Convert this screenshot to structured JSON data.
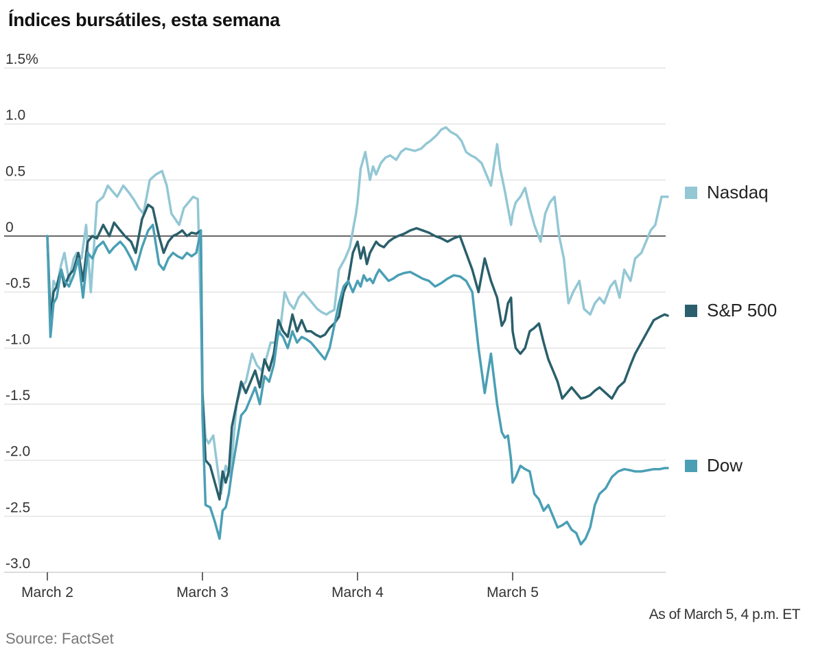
{
  "chart_data": {
    "type": "line",
    "title": "Índices bursátiles, esta semana",
    "xlabel": "",
    "ylabel": "",
    "ylim": [
      -3.0,
      1.5
    ],
    "y_ticks": [
      1.5,
      1.0,
      0.5,
      0,
      -0.5,
      -1.0,
      -1.5,
      -2.0,
      -2.5,
      -3.0
    ],
    "y_tick_labels": [
      "1.5%",
      "1.0",
      "0.5",
      "0",
      "-0.5",
      "-1.0",
      "-1.5",
      "-2.0",
      "-2.5",
      "-3.0"
    ],
    "x_range": [
      0,
      4
    ],
    "categories": [
      "March 2",
      "March 3",
      "March 4",
      "March 5"
    ],
    "zero_line": true,
    "note": "As of March 5, 4 p.m. ET",
    "source": "Source: FactSet",
    "series": [
      {
        "name": "Nasdaq",
        "color": "#93c7d4",
        "x": [
          0,
          0.02,
          0.04,
          0.06,
          0.09,
          0.11,
          0.14,
          0.17,
          0.19,
          0.22,
          0.25,
          0.28,
          0.32,
          0.36,
          0.39,
          0.42,
          0.45,
          0.49,
          0.53,
          0.56,
          0.59,
          0.62,
          0.66,
          0.7,
          0.74,
          0.77,
          0.8,
          0.85,
          0.88,
          0.91,
          0.94,
          0.97,
          0.99,
          1.0,
          1.02,
          1.04,
          1.07,
          1.1,
          1.12,
          1.15,
          1.18,
          1.22,
          1.25,
          1.28,
          1.32,
          1.35,
          1.38,
          1.41,
          1.44,
          1.47,
          1.5,
          1.53,
          1.56,
          1.59,
          1.62,
          1.65,
          1.68,
          1.71,
          1.74,
          1.77,
          1.8,
          1.82,
          1.85,
          1.88,
          1.92,
          1.95,
          1.99,
          2.0,
          2.02,
          2.05,
          2.08,
          2.1,
          2.12,
          2.15,
          2.18,
          2.21,
          2.25,
          2.28,
          2.31,
          2.34,
          2.37,
          2.41,
          2.44,
          2.47,
          2.51,
          2.54,
          2.57,
          2.6,
          2.64,
          2.67,
          2.7,
          2.73,
          2.76,
          2.8,
          2.83,
          2.86,
          2.9,
          2.92,
          2.95,
          2.99,
          3.0,
          3.02,
          3.05,
          3.08,
          3.11,
          3.14,
          3.18,
          3.21,
          3.24,
          3.27,
          3.3,
          3.33,
          3.36,
          3.39,
          3.43,
          3.46,
          3.5,
          3.53,
          3.56,
          3.59,
          3.63,
          3.66,
          3.69,
          3.72,
          3.76,
          3.79,
          3.83,
          3.86,
          3.89,
          3.92,
          3.96,
          4.0
        ],
        "values": [
          0.0,
          -0.75,
          -0.4,
          -0.45,
          -0.25,
          -0.15,
          -0.4,
          -0.2,
          -0.15,
          -0.2,
          0.1,
          -0.5,
          0.3,
          0.35,
          0.45,
          0.4,
          0.35,
          0.45,
          0.38,
          0.32,
          0.25,
          0.2,
          0.5,
          0.55,
          0.58,
          0.45,
          0.2,
          0.1,
          0.25,
          0.3,
          0.35,
          0.33,
          -0.7,
          -1.4,
          -1.8,
          -1.85,
          -1.78,
          -2.1,
          -2.3,
          -2.05,
          -2.15,
          -1.5,
          -1.35,
          -1.3,
          -1.05,
          -1.15,
          -1.2,
          -1.1,
          -0.95,
          -0.95,
          -0.85,
          -0.5,
          -0.6,
          -0.65,
          -0.55,
          -0.5,
          -0.55,
          -0.6,
          -0.65,
          -0.68,
          -0.7,
          -0.68,
          -0.66,
          -0.3,
          -0.2,
          -0.1,
          0.2,
          0.3,
          0.6,
          0.75,
          0.5,
          0.62,
          0.55,
          0.65,
          0.7,
          0.72,
          0.68,
          0.75,
          0.78,
          0.77,
          0.76,
          0.78,
          0.82,
          0.85,
          0.9,
          0.95,
          0.97,
          0.93,
          0.9,
          0.85,
          0.75,
          0.72,
          0.7,
          0.65,
          0.55,
          0.45,
          0.82,
          0.6,
          0.4,
          0.1,
          0.2,
          0.3,
          0.35,
          0.43,
          0.25,
          0.1,
          -0.05,
          0.2,
          0.3,
          0.35,
          0.0,
          -0.2,
          -0.6,
          -0.5,
          -0.4,
          -0.65,
          -0.7,
          -0.6,
          -0.55,
          -0.6,
          -0.45,
          -0.4,
          -0.55,
          -0.3,
          -0.4,
          -0.2,
          -0.15,
          -0.05,
          0.05,
          0.1,
          0.35,
          0.35
        ]
      },
      {
        "name": "S&P 500",
        "color": "#2a5f6b",
        "x": [
          0,
          0.02,
          0.04,
          0.06,
          0.09,
          0.11,
          0.14,
          0.17,
          0.2,
          0.23,
          0.26,
          0.29,
          0.32,
          0.36,
          0.4,
          0.43,
          0.47,
          0.5,
          0.54,
          0.57,
          0.61,
          0.65,
          0.68,
          0.72,
          0.75,
          0.78,
          0.81,
          0.84,
          0.87,
          0.9,
          0.93,
          0.96,
          0.99,
          1.0,
          1.02,
          1.05,
          1.08,
          1.11,
          1.13,
          1.15,
          1.17,
          1.19,
          1.22,
          1.25,
          1.28,
          1.31,
          1.34,
          1.37,
          1.4,
          1.43,
          1.46,
          1.49,
          1.52,
          1.55,
          1.58,
          1.61,
          1.64,
          1.67,
          1.7,
          1.73,
          1.76,
          1.79,
          1.82,
          1.85,
          1.88,
          1.91,
          1.94,
          1.97,
          2.0,
          2.02,
          2.04,
          2.06,
          2.08,
          2.1,
          2.12,
          2.14,
          2.17,
          2.2,
          2.23,
          2.26,
          2.3,
          2.34,
          2.38,
          2.42,
          2.46,
          2.5,
          2.54,
          2.58,
          2.62,
          2.66,
          2.7,
          2.74,
          2.78,
          2.82,
          2.86,
          2.9,
          2.93,
          2.95,
          2.97,
          2.99,
          3.0,
          3.02,
          3.05,
          3.08,
          3.11,
          3.14,
          3.17,
          3.2,
          3.23,
          3.26,
          3.29,
          3.32,
          3.35,
          3.38,
          3.41,
          3.44,
          3.47,
          3.5,
          3.53,
          3.56,
          3.6,
          3.64,
          3.68,
          3.72,
          3.76,
          3.79,
          3.83,
          3.87,
          3.91,
          3.95,
          3.98,
          4.0
        ],
        "values": [
          0.0,
          -0.75,
          -0.5,
          -0.45,
          -0.3,
          -0.45,
          -0.35,
          -0.3,
          -0.15,
          -0.4,
          -0.05,
          0.0,
          -0.02,
          0.1,
          0.0,
          0.12,
          0.05,
          0.0,
          -0.05,
          -0.15,
          0.15,
          0.28,
          0.25,
          0.0,
          -0.15,
          -0.05,
          0.0,
          0.02,
          0.05,
          0.0,
          0.03,
          0.02,
          0.05,
          -1.4,
          -2.0,
          -2.05,
          -2.2,
          -2.35,
          -2.1,
          -2.2,
          -2.1,
          -1.7,
          -1.5,
          -1.3,
          -1.4,
          -1.3,
          -1.2,
          -1.35,
          -1.1,
          -1.2,
          -1.05,
          -0.75,
          -0.85,
          -0.9,
          -0.7,
          -0.85,
          -0.75,
          -0.85,
          -0.85,
          -0.88,
          -0.9,
          -0.88,
          -0.82,
          -0.78,
          -0.72,
          -0.5,
          -0.4,
          -0.15,
          -0.05,
          -0.2,
          -0.1,
          -0.25,
          -0.15,
          -0.1,
          -0.05,
          -0.08,
          -0.1,
          -0.05,
          -0.02,
          0.0,
          0.02,
          0.05,
          0.07,
          0.05,
          0.03,
          0.0,
          -0.02,
          -0.05,
          -0.02,
          0.0,
          -0.15,
          -0.3,
          -0.5,
          -0.2,
          -0.4,
          -0.55,
          -0.8,
          -0.75,
          -0.6,
          -0.55,
          -0.85,
          -1.0,
          -1.05,
          -1.0,
          -0.85,
          -0.82,
          -0.78,
          -0.95,
          -1.1,
          -1.2,
          -1.3,
          -1.45,
          -1.4,
          -1.35,
          -1.4,
          -1.45,
          -1.44,
          -1.42,
          -1.38,
          -1.35,
          -1.4,
          -1.45,
          -1.35,
          -1.3,
          -1.15,
          -1.05,
          -0.95,
          -0.85,
          -0.75,
          -0.72,
          -0.7,
          -0.71
        ]
      },
      {
        "name": "Dow",
        "color": "#4a9fb5",
        "x": [
          0,
          0.02,
          0.04,
          0.06,
          0.09,
          0.11,
          0.14,
          0.17,
          0.2,
          0.23,
          0.26,
          0.29,
          0.32,
          0.36,
          0.4,
          0.43,
          0.47,
          0.5,
          0.54,
          0.57,
          0.61,
          0.65,
          0.68,
          0.72,
          0.75,
          0.78,
          0.81,
          0.84,
          0.87,
          0.9,
          0.93,
          0.96,
          0.99,
          1.0,
          1.02,
          1.05,
          1.08,
          1.11,
          1.13,
          1.15,
          1.17,
          1.19,
          1.22,
          1.25,
          1.28,
          1.31,
          1.34,
          1.37,
          1.4,
          1.43,
          1.46,
          1.49,
          1.52,
          1.55,
          1.58,
          1.61,
          1.64,
          1.67,
          1.7,
          1.73,
          1.76,
          1.79,
          1.82,
          1.85,
          1.88,
          1.91,
          1.94,
          1.97,
          2.0,
          2.02,
          2.04,
          2.06,
          2.08,
          2.1,
          2.12,
          2.14,
          2.17,
          2.2,
          2.23,
          2.26,
          2.3,
          2.34,
          2.38,
          2.42,
          2.46,
          2.5,
          2.54,
          2.58,
          2.62,
          2.66,
          2.7,
          2.74,
          2.78,
          2.82,
          2.86,
          2.9,
          2.93,
          2.95,
          2.97,
          2.99,
          3.0,
          3.02,
          3.05,
          3.08,
          3.11,
          3.14,
          3.17,
          3.2,
          3.23,
          3.26,
          3.29,
          3.32,
          3.35,
          3.38,
          3.41,
          3.44,
          3.47,
          3.5,
          3.53,
          3.56,
          3.6,
          3.64,
          3.68,
          3.72,
          3.76,
          3.79,
          3.83,
          3.87,
          3.91,
          3.95,
          3.98,
          4.0
        ],
        "values": [
          0.0,
          -0.9,
          -0.6,
          -0.55,
          -0.3,
          -0.4,
          -0.45,
          -0.35,
          -0.2,
          -0.55,
          -0.15,
          -0.2,
          -0.1,
          -0.05,
          -0.15,
          -0.1,
          -0.05,
          -0.1,
          -0.2,
          -0.3,
          -0.1,
          0.05,
          0.1,
          -0.25,
          -0.3,
          -0.2,
          -0.15,
          -0.18,
          -0.2,
          -0.15,
          -0.18,
          -0.15,
          0.05,
          -1.6,
          -2.4,
          -2.42,
          -2.55,
          -2.7,
          -2.45,
          -2.42,
          -2.3,
          -2.1,
          -1.85,
          -1.6,
          -1.55,
          -1.45,
          -1.35,
          -1.5,
          -1.25,
          -1.3,
          -1.15,
          -0.85,
          -0.9,
          -1.0,
          -0.85,
          -0.95,
          -0.9,
          -0.92,
          -0.95,
          -1.0,
          -1.05,
          -1.1,
          -1.0,
          -0.8,
          -0.6,
          -0.45,
          -0.4,
          -0.5,
          -0.4,
          -0.45,
          -0.35,
          -0.4,
          -0.38,
          -0.42,
          -0.35,
          -0.3,
          -0.35,
          -0.4,
          -0.38,
          -0.35,
          -0.33,
          -0.32,
          -0.35,
          -0.38,
          -0.4,
          -0.45,
          -0.42,
          -0.38,
          -0.35,
          -0.36,
          -0.4,
          -0.5,
          -1.0,
          -1.4,
          -1.05,
          -1.5,
          -1.75,
          -1.8,
          -1.78,
          -2.0,
          -2.2,
          -2.15,
          -2.05,
          -2.08,
          -2.1,
          -2.3,
          -2.35,
          -2.45,
          -2.4,
          -2.5,
          -2.6,
          -2.58,
          -2.55,
          -2.62,
          -2.65,
          -2.75,
          -2.7,
          -2.6,
          -2.4,
          -2.3,
          -2.25,
          -2.15,
          -2.1,
          -2.08,
          -2.09,
          -2.1,
          -2.1,
          -2.09,
          -2.08,
          -2.08,
          -2.07,
          -2.07
        ]
      }
    ]
  }
}
